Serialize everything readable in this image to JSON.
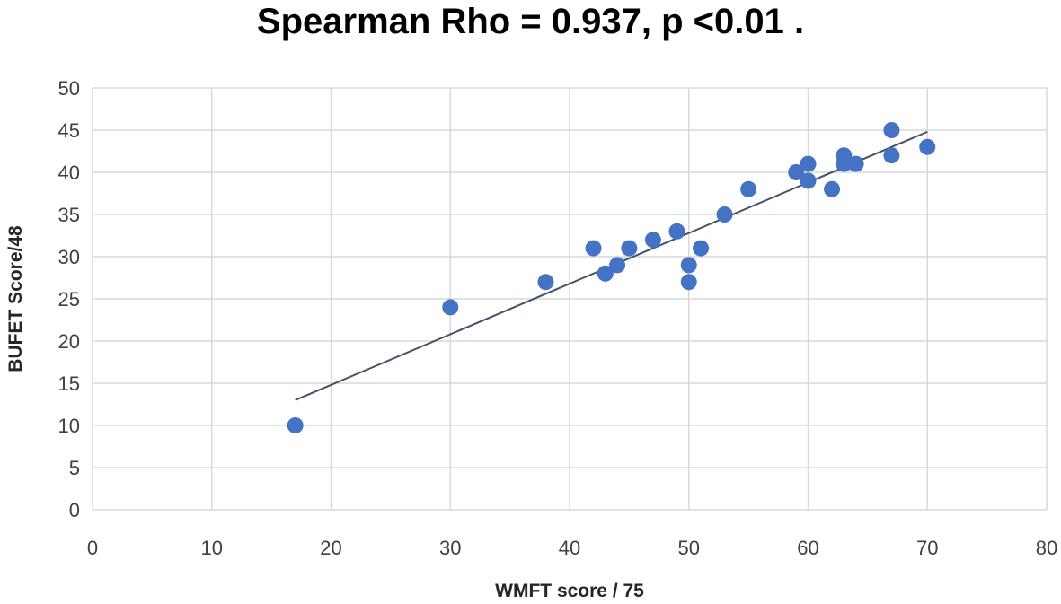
{
  "chart_data": {
    "type": "scatter",
    "title": "Spearman Rho = 0.937, p <0.01 .",
    "xlabel": "WMFT score / 75",
    "ylabel": "BUFET Score/48",
    "xlim": [
      0,
      80
    ],
    "ylim": [
      0,
      50
    ],
    "xticks": [
      0,
      10,
      20,
      30,
      40,
      50,
      60,
      70,
      80
    ],
    "yticks": [
      0,
      5,
      10,
      15,
      20,
      25,
      30,
      35,
      40,
      45,
      50
    ],
    "grid": true,
    "marker_color": "#4472C4",
    "line_color": "#44546A",
    "points": [
      {
        "x": 17,
        "y": 10
      },
      {
        "x": 30,
        "y": 24
      },
      {
        "x": 38,
        "y": 27
      },
      {
        "x": 42,
        "y": 31
      },
      {
        "x": 43,
        "y": 28
      },
      {
        "x": 44,
        "y": 29
      },
      {
        "x": 45,
        "y": 31
      },
      {
        "x": 47,
        "y": 32
      },
      {
        "x": 49,
        "y": 33
      },
      {
        "x": 50,
        "y": 29
      },
      {
        "x": 50,
        "y": 27
      },
      {
        "x": 51,
        "y": 31
      },
      {
        "x": 53,
        "y": 35
      },
      {
        "x": 55,
        "y": 38
      },
      {
        "x": 59,
        "y": 40
      },
      {
        "x": 60,
        "y": 41
      },
      {
        "x": 60,
        "y": 39
      },
      {
        "x": 62,
        "y": 38
      },
      {
        "x": 63,
        "y": 42
      },
      {
        "x": 63,
        "y": 41
      },
      {
        "x": 64,
        "y": 41
      },
      {
        "x": 67,
        "y": 45
      },
      {
        "x": 67,
        "y": 42
      },
      {
        "x": 70,
        "y": 43
      }
    ],
    "trendline": {
      "x": [
        17,
        70
      ],
      "y": [
        13,
        44.8
      ]
    }
  }
}
